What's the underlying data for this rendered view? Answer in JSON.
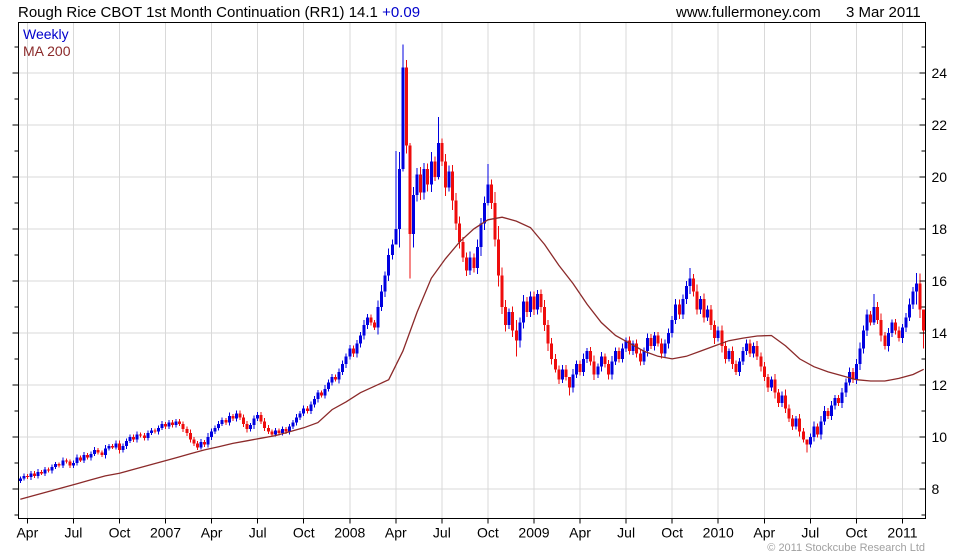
{
  "header": {
    "title_main": "Rough Rice CBOT 1st Month Continuation (RR1) 14.1 ",
    "title_change": "+0.09",
    "site": "www.fullermoney.com",
    "date": "3 Mar 2011"
  },
  "legend": {
    "series": "Weekly",
    "ma": "MA 200"
  },
  "footer": {
    "copyright": "© 2011 Stockcube Research Ltd"
  },
  "colors": {
    "up": "#0000e0",
    "down": "#ee0c0c",
    "ma_line": "#8b2a2a",
    "grid": "#d9d9d9",
    "axis": "#000000",
    "label": "#000000",
    "change": "#0000cc",
    "legend_weekly": "#0000cc",
    "legend_ma": "#8b2a2a",
    "copyright": "#a0a0a0"
  },
  "chart_data": {
    "type": "candlestick",
    "interval": "weekly",
    "title": "Rough Rice CBOT 1st Month Continuation (RR1)",
    "last_price": 14.1,
    "change": "+0.09",
    "legend": [
      "Weekly",
      "MA 200"
    ],
    "y_axis": {
      "value_at_top": 25.94,
      "value_at_bottom": 6.86,
      "major_step": 2,
      "minor_step": 1,
      "labels": [
        8,
        10,
        12,
        14,
        16,
        18,
        20,
        22,
        24
      ],
      "grid": "horizontal-major"
    },
    "x_axis": {
      "weeks_total": 256,
      "tick_weeks": [
        2,
        15,
        28,
        41,
        54,
        67,
        80,
        93,
        106,
        119,
        132,
        145,
        158,
        171,
        184,
        197,
        210,
        223,
        236,
        249
      ],
      "labels": [
        "Apr",
        "Jul",
        "Oct",
        "2007",
        "Apr",
        "Jul",
        "Oct",
        "2008",
        "Apr",
        "Jul",
        "Oct",
        "2009",
        "Apr",
        "Jul",
        "Oct",
        "2010",
        "Apr",
        "Jul",
        "Oct",
        "2011"
      ],
      "grid": "vertical-at-ticks"
    },
    "first_open": 8.3,
    "closes": [
      8.4,
      8.5,
      8.45,
      8.6,
      8.5,
      8.65,
      8.6,
      8.75,
      8.7,
      8.85,
      8.95,
      8.9,
      9.1,
      9.05,
      8.9,
      9.0,
      9.2,
      9.1,
      9.3,
      9.2,
      9.35,
      9.5,
      9.4,
      9.3,
      9.55,
      9.65,
      9.6,
      9.75,
      9.5,
      9.65,
      9.85,
      10.0,
      9.9,
      10.1,
      10.05,
      9.95,
      10.15,
      10.25,
      10.2,
      10.35,
      10.5,
      10.4,
      10.55,
      10.45,
      10.6,
      10.5,
      10.3,
      10.15,
      9.9,
      9.75,
      9.6,
      9.8,
      9.7,
      10.0,
      10.2,
      10.35,
      10.5,
      10.65,
      10.55,
      10.8,
      10.7,
      10.9,
      10.75,
      10.5,
      10.3,
      10.45,
      10.7,
      10.85,
      10.6,
      10.35,
      10.2,
      10.1,
      10.25,
      10.15,
      10.3,
      10.2,
      10.4,
      10.55,
      10.75,
      10.9,
      11.1,
      11.0,
      11.25,
      11.45,
      11.7,
      11.6,
      11.85,
      12.1,
      12.3,
      12.2,
      12.5,
      12.8,
      13.1,
      13.4,
      13.2,
      13.6,
      13.9,
      14.3,
      14.6,
      14.4,
      14.2,
      15.0,
      15.6,
      16.2,
      17.0,
      17.4,
      18.0,
      20.3,
      24.2,
      21.2,
      17.8,
      19.3,
      20.1,
      19.4,
      20.3,
      19.7,
      20.6,
      20.0,
      21.3,
      20.6,
      19.6,
      20.2,
      19.1,
      18.2,
      17.5,
      16.9,
      16.4,
      16.9,
      16.5,
      17.3,
      18.2,
      19.0,
      19.7,
      19.0,
      17.6,
      16.2,
      15.0,
      14.3,
      14.8,
      14.1,
      13.7,
      14.4,
      15.2,
      14.8,
      15.4,
      14.9,
      15.5,
      15.0,
      14.3,
      13.6,
      13.0,
      12.6,
      12.2,
      12.6,
      12.3,
      11.9,
      12.4,
      12.8,
      12.5,
      13.0,
      13.3,
      12.9,
      12.4,
      12.7,
      13.1,
      12.8,
      12.4,
      12.9,
      13.3,
      13.0,
      13.4,
      13.7,
      13.3,
      13.6,
      13.2,
      12.9,
      13.3,
      13.8,
      13.5,
      13.9,
      13.6,
      13.2,
      13.6,
      14.0,
      14.5,
      15.1,
      14.7,
      15.3,
      15.8,
      16.1,
      15.6,
      14.9,
      15.3,
      14.6,
      14.9,
      14.3,
      13.8,
      14.1,
      13.5,
      13.0,
      13.3,
      12.8,
      12.5,
      12.9,
      13.3,
      13.6,
      13.2,
      13.5,
      13.1,
      12.7,
      12.3,
      11.9,
      12.2,
      11.7,
      11.3,
      11.6,
      11.1,
      10.7,
      10.4,
      10.7,
      10.2,
      9.9,
      9.7,
      10.0,
      10.4,
      10.1,
      10.6,
      11.0,
      10.8,
      11.2,
      11.5,
      11.3,
      11.7,
      12.1,
      12.5,
      12.2,
      12.8,
      13.4,
      14.1,
      14.7,
      14.4,
      15.0,
      14.5,
      13.9,
      13.5,
      14.0,
      14.4,
      14.1,
      13.8,
      14.2,
      14.6,
      15.1,
      15.6,
      15.9,
      14.9,
      14.1
    ],
    "wick_overrides": {
      "106": [
        21.0,
        17.9
      ],
      "108": [
        25.1,
        20.2
      ],
      "109": [
        24.5,
        20.9
      ],
      "110": [
        21.3,
        16.1
      ],
      "118": [
        22.3,
        19.9
      ],
      "132": [
        20.5,
        18.9
      ],
      "140": [
        14.5,
        13.1
      ],
      "155": [
        12.2,
        11.6
      ],
      "189": [
        16.5,
        15.5
      ],
      "222": [
        9.9,
        9.4
      ],
      "241": [
        15.5,
        14.3
      ],
      "253": [
        16.3,
        15.1
      ],
      "255": [
        14.4,
        13.4
      ]
    },
    "ma200": {
      "step_weeks": 4,
      "last_week": 255,
      "values": [
        7.6,
        7.75,
        7.9,
        8.05,
        8.2,
        8.35,
        8.5,
        8.6,
        8.75,
        8.9,
        9.05,
        9.2,
        9.35,
        9.5,
        9.62,
        9.75,
        9.85,
        9.95,
        10.05,
        10.2,
        10.35,
        10.55,
        11.05,
        11.35,
        11.7,
        11.95,
        12.2,
        13.3,
        14.8,
        16.1,
        16.85,
        17.5,
        18.0,
        18.35,
        18.45,
        18.3,
        18.05,
        17.4,
        16.6,
        15.9,
        15.1,
        14.4,
        13.9,
        13.6,
        13.3,
        13.1,
        13.0,
        13.1,
        13.3,
        13.5,
        13.7,
        13.8,
        13.88,
        13.9,
        13.5,
        13.0,
        12.7,
        12.5,
        12.35,
        12.2,
        12.15,
        12.15,
        12.25,
        12.4,
        12.6
      ]
    }
  }
}
